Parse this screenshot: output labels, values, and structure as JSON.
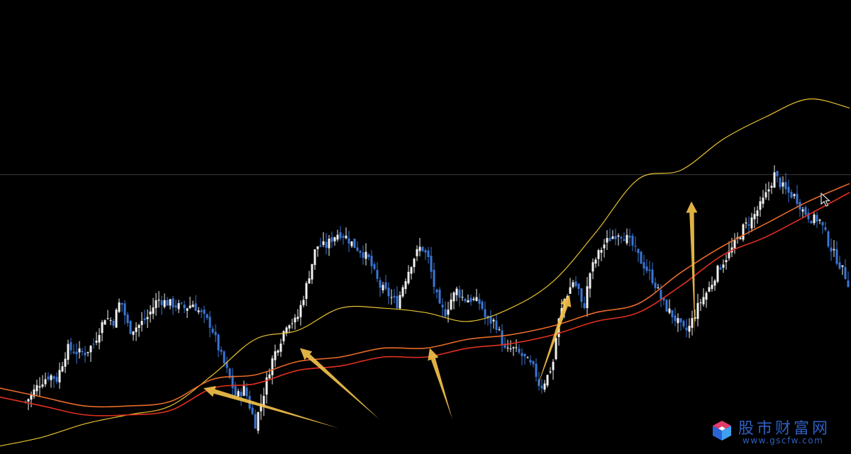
{
  "chart_data": {
    "type": "candlestick",
    "title": "",
    "xlabel": "",
    "ylabel": "",
    "ylim": [
      0,
      100
    ],
    "grid": false,
    "colors": {
      "background": "#000000",
      "up_candle": "#f2f2f2",
      "down_candle": "#3a76d6",
      "short_ma": "#e8c230",
      "long_ma_1": "#e0301e",
      "long_ma_2": "#e86a2a",
      "arrow": "#f2c04a",
      "reference_line": "#3a3a3a"
    },
    "reference_line": 62,
    "close_path": [
      [
        0,
        2
      ],
      [
        10,
        4
      ],
      [
        20,
        8
      ],
      [
        30,
        10
      ],
      [
        42,
        12
      ],
      [
        55,
        15
      ],
      [
        70,
        17
      ],
      [
        80,
        16
      ],
      [
        95,
        23
      ],
      [
        110,
        22
      ],
      [
        120,
        22
      ],
      [
        132,
        24
      ],
      [
        140,
        27
      ],
      [
        148,
        30
      ],
      [
        160,
        29
      ],
      [
        170,
        34
      ],
      [
        182,
        27
      ],
      [
        195,
        28
      ],
      [
        208,
        30
      ],
      [
        222,
        34
      ],
      [
        240,
        33
      ],
      [
        260,
        32
      ],
      [
        272,
        33
      ],
      [
        282,
        31
      ],
      [
        298,
        28
      ],
      [
        310,
        22
      ],
      [
        322,
        17
      ],
      [
        333,
        12
      ],
      [
        345,
        14
      ],
      [
        352,
        10
      ],
      [
        360,
        6
      ],
      [
        372,
        13
      ],
      [
        378,
        17
      ],
      [
        385,
        21
      ],
      [
        396,
        25
      ],
      [
        405,
        29
      ],
      [
        418,
        29
      ],
      [
        432,
        37
      ],
      [
        446,
        46
      ],
      [
        460,
        46
      ],
      [
        470,
        48
      ],
      [
        478,
        49
      ],
      [
        488,
        48
      ],
      [
        500,
        46
      ],
      [
        508,
        45
      ],
      [
        520,
        43
      ],
      [
        535,
        37
      ],
      [
        548,
        35
      ],
      [
        560,
        33
      ],
      [
        570,
        38
      ],
      [
        582,
        43
      ],
      [
        594,
        46
      ],
      [
        604,
        43
      ],
      [
        612,
        37
      ],
      [
        620,
        32
      ],
      [
        628,
        31
      ],
      [
        636,
        34
      ],
      [
        644,
        36
      ],
      [
        654,
        34
      ],
      [
        665,
        34
      ],
      [
        678,
        33
      ],
      [
        686,
        29
      ],
      [
        698,
        29
      ],
      [
        705,
        26
      ],
      [
        713,
        22
      ],
      [
        722,
        23
      ],
      [
        738,
        21
      ],
      [
        754,
        18
      ],
      [
        762,
        14
      ],
      [
        773,
        17
      ],
      [
        780,
        20
      ],
      [
        786,
        28
      ],
      [
        796,
        34
      ],
      [
        808,
        38
      ],
      [
        816,
        36
      ],
      [
        822,
        31
      ],
      [
        832,
        40
      ],
      [
        840,
        43
      ],
      [
        850,
        46
      ],
      [
        862,
        48
      ],
      [
        872,
        49
      ],
      [
        882,
        48
      ],
      [
        892,
        46
      ],
      [
        902,
        43
      ],
      [
        915,
        40
      ],
      [
        925,
        37
      ],
      [
        935,
        33
      ],
      [
        945,
        31
      ],
      [
        955,
        29
      ],
      [
        963,
        27
      ],
      [
        970,
        27
      ],
      [
        978,
        30
      ],
      [
        986,
        33
      ],
      [
        994,
        35
      ],
      [
        1002,
        37
      ],
      [
        1010,
        40
      ],
      [
        1022,
        43
      ],
      [
        1035,
        46
      ],
      [
        1048,
        50
      ],
      [
        1060,
        52
      ],
      [
        1072,
        55
      ],
      [
        1082,
        58
      ],
      [
        1092,
        62
      ],
      [
        1100,
        60
      ],
      [
        1110,
        58
      ],
      [
        1122,
        57
      ],
      [
        1132,
        54
      ],
      [
        1145,
        52
      ],
      [
        1155,
        52
      ],
      [
        1163,
        49
      ],
      [
        1170,
        46
      ],
      [
        1180,
        43
      ],
      [
        1190,
        40
      ],
      [
        1198,
        37
      ]
    ],
    "series": [
      {
        "name": "",
        "role": "short_ma",
        "x": [
          0,
          60,
          120,
          180,
          240,
          300,
          360,
          420,
          480,
          540,
          600,
          660,
          720,
          780,
          840,
          900,
          960,
          1020,
          1080,
          1140,
          1198
        ],
        "values": [
          1,
          3,
          6,
          8,
          10,
          17,
          25,
          27,
          32,
          32,
          31,
          29,
          32,
          38,
          49,
          61,
          63,
          70,
          75,
          79,
          77
        ]
      },
      {
        "name": "",
        "role": "long_ma_1",
        "x": [
          0,
          60,
          120,
          180,
          240,
          300,
          360,
          420,
          480,
          540,
          600,
          660,
          720,
          780,
          840,
          900,
          960,
          1020,
          1080,
          1140,
          1198
        ],
        "values": [
          12,
          10,
          8,
          8,
          9,
          14,
          15,
          18,
          19,
          21,
          21,
          23,
          24,
          26,
          29,
          31,
          37,
          44,
          48,
          53,
          58
        ]
      },
      {
        "name": "",
        "role": "long_ma_2",
        "x": [
          0,
          60,
          120,
          180,
          240,
          300,
          360,
          420,
          480,
          540,
          600,
          660,
          720,
          780,
          840,
          900,
          960,
          1020,
          1080,
          1140,
          1198
        ],
        "values": [
          14,
          12,
          10,
          10,
          11,
          16,
          17,
          20,
          21,
          23,
          23,
          25,
          26,
          28,
          31,
          33,
          40,
          46,
          51,
          56,
          60
        ]
      }
    ],
    "annotations": [
      {
        "type": "arrow",
        "tail": [
          478,
          5
        ],
        "head": [
          287,
          14
        ]
      },
      {
        "type": "arrow",
        "tail": [
          535,
          7
        ],
        "head": [
          423,
          23
        ]
      },
      {
        "type": "arrow",
        "tail": [
          638,
          7
        ],
        "head": [
          606,
          23
        ]
      },
      {
        "type": "arrow",
        "tail": [
          757,
          14
        ],
        "head": [
          803,
          35
        ]
      },
      {
        "type": "arrow",
        "tail": [
          980,
          26
        ],
        "head": [
          975,
          56
        ]
      }
    ]
  },
  "watermark": {
    "title": "股市财富网",
    "url": "www.gscfw.com",
    "logo_icon": "cube-logo-icon",
    "color": "#2f5fc4"
  },
  "cursor": {
    "icon": "mouse-pointer-icon"
  }
}
